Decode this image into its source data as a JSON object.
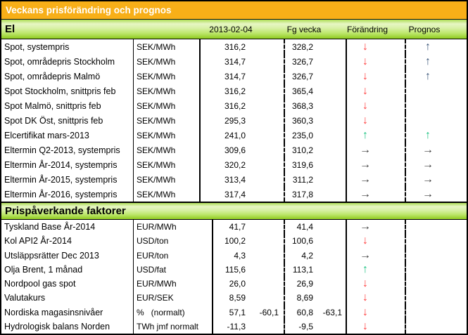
{
  "title": "Veckans prisförändring och prognos",
  "columns": [
    "2013-02-04",
    "Fg vecka",
    "Förändring",
    "Prognos"
  ],
  "arrow_glyphs": {
    "down": "↓",
    "up": "↑",
    "flat": "→",
    "up_dark": "↑"
  },
  "colors": {
    "header_orange": "#F8AF18",
    "green_light": "#E7F6C4",
    "green_mid": "#BCE66A",
    "green_dark": "#8FCB1F",
    "arrow_red": "#FF3B3B",
    "arrow_green": "#17C17E",
    "arrow_dark": "#3A3A3A",
    "arrow_navy": "#3A5578"
  },
  "sections": [
    {
      "header": "El",
      "rows": [
        {
          "label": "Spot, systempris",
          "unit": "SEK/MWh",
          "value": "316,2",
          "value_extra": "",
          "prev": "328,2",
          "prev_extra": "",
          "change": "down",
          "forecast": "up_dark"
        },
        {
          "label": "Spot, områdepris Stockholm",
          "unit": "SEK/MWh",
          "value": "314,7",
          "value_extra": "",
          "prev": "326,7",
          "prev_extra": "",
          "change": "down",
          "forecast": "up_dark"
        },
        {
          "label": "Spot, områdepris Malmö",
          "unit": "SEK/MWh",
          "value": "314,7",
          "value_extra": "",
          "prev": "326,7",
          "prev_extra": "",
          "change": "down",
          "forecast": "up_dark"
        },
        {
          "label": "Spot Stockholm, snittpris feb",
          "unit": "SEK/MWh",
          "value": "316,2",
          "value_extra": "",
          "prev": "365,4",
          "prev_extra": "",
          "change": "down",
          "forecast": ""
        },
        {
          "label": "Spot Malmö, snittpris feb",
          "unit": "SEK/MWh",
          "value": "316,2",
          "value_extra": "",
          "prev": "368,3",
          "prev_extra": "",
          "change": "down",
          "forecast": ""
        },
        {
          "label": "Spot DK Öst, snittpris feb",
          "unit": "SEK/MWh",
          "value": "295,3",
          "value_extra": "",
          "prev": "360,3",
          "prev_extra": "",
          "change": "down",
          "forecast": ""
        },
        {
          "label": "Elcertifikat mars-2013",
          "unit": "SEK/MWh",
          "value": "241,0",
          "value_extra": "",
          "prev": "235,0",
          "prev_extra": "",
          "change": "up",
          "forecast": "up"
        },
        {
          "label": "Eltermin Q2-2013, systempris",
          "unit": "SEK/MWh",
          "value": "309,6",
          "value_extra": "",
          "prev": "310,2",
          "prev_extra": "",
          "change": "flat",
          "forecast": "flat"
        },
        {
          "label": "Eltermin År-2014, systempris",
          "unit": "SEK/MWh",
          "value": "320,2",
          "value_extra": "",
          "prev": "319,6",
          "prev_extra": "",
          "change": "flat",
          "forecast": "flat"
        },
        {
          "label": "Eltermin År-2015, systempris",
          "unit": "SEK/MWh",
          "value": "313,4",
          "value_extra": "",
          "prev": "311,2",
          "prev_extra": "",
          "change": "flat",
          "forecast": "flat"
        },
        {
          "label": "Eltermin År-2016, systempris",
          "unit": "SEK/MWh",
          "value": "317,4",
          "value_extra": "",
          "prev": "317,8",
          "prev_extra": "",
          "change": "flat",
          "forecast": "flat"
        }
      ]
    },
    {
      "header": "Prispåverkande faktorer",
      "rows": [
        {
          "label": "Tyskland Base År-2014",
          "unit": "EUR/MWh",
          "value": "41,7",
          "value_extra": "",
          "prev": "41,4",
          "prev_extra": "",
          "change": "flat",
          "forecast": ""
        },
        {
          "label": "Kol API2 År-2014",
          "unit": "USD/ton",
          "value": "100,2",
          "value_extra": "",
          "prev": "100,6",
          "prev_extra": "",
          "change": "down",
          "forecast": ""
        },
        {
          "label": "Utsläppsrätter Dec 2013",
          "unit": "EUR/ton",
          "value": "4,3",
          "value_extra": "",
          "prev": "4,2",
          "prev_extra": "",
          "change": "flat",
          "forecast": ""
        },
        {
          "label": "Olja Brent, 1 månad",
          "unit": "USD/fat",
          "value": "115,6",
          "value_extra": "",
          "prev": "113,1",
          "prev_extra": "",
          "change": "up",
          "forecast": ""
        },
        {
          "label": "Nordpool gas spot",
          "unit": "EUR/MWh",
          "value": "26,0",
          "value_extra": "",
          "prev": "26,9",
          "prev_extra": "",
          "change": "down",
          "forecast": ""
        },
        {
          "label": "Valutakurs",
          "unit": "EUR/SEK",
          "value": "8,59",
          "value_extra": "",
          "prev": "8,69",
          "prev_extra": "",
          "change": "down",
          "forecast": ""
        },
        {
          "label": "Nordiska magasinsnivåer",
          "unit": "%   (normalt)",
          "value": "57,1",
          "value_extra": "-60,1",
          "prev": "60,8",
          "prev_extra": "-63,1",
          "change": "down",
          "forecast": ""
        },
        {
          "label": "Hydrologisk balans Norden",
          "unit": "TWh jmf normalt",
          "value": "-11,3",
          "value_extra": "",
          "prev": "-9,5",
          "prev_extra": "",
          "change": "down",
          "forecast": ""
        }
      ]
    }
  ]
}
